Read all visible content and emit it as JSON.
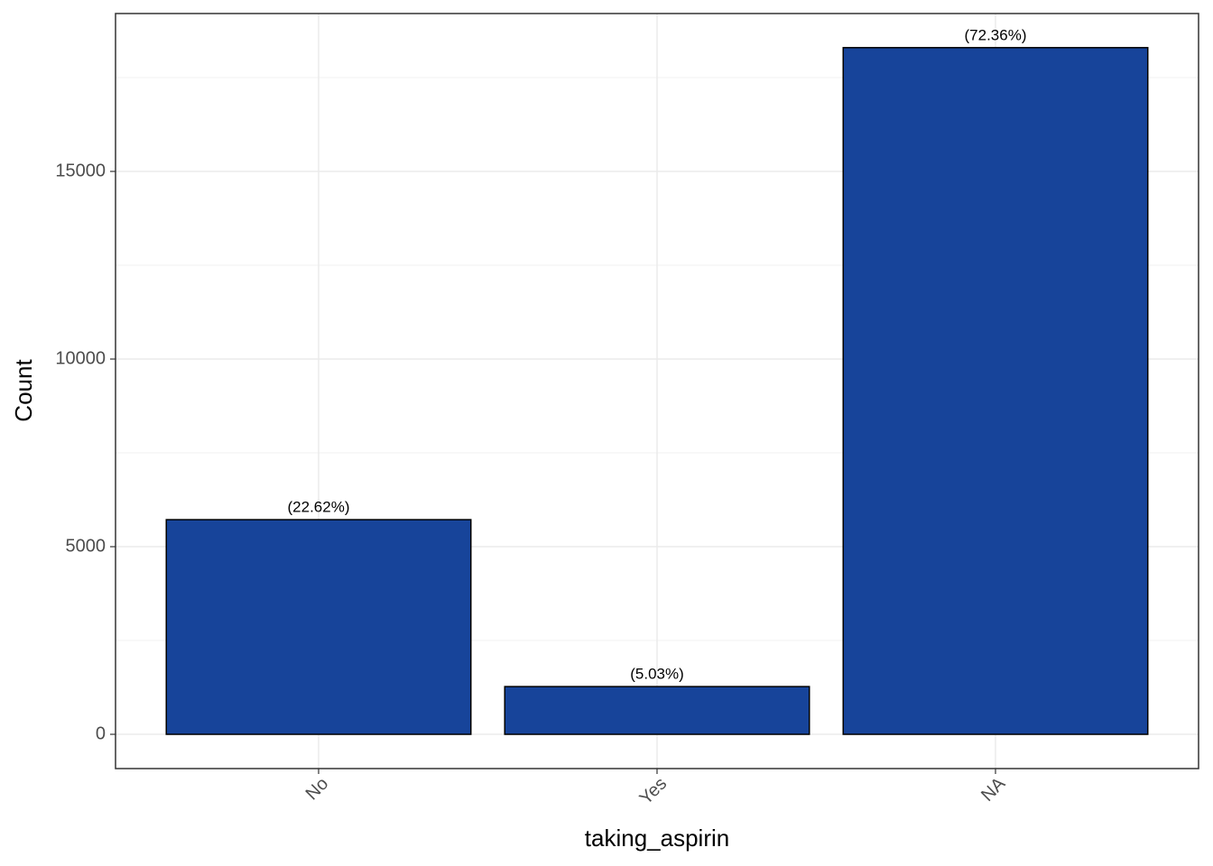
{
  "chart_data": {
    "type": "bar",
    "x_label": "taking_aspirin",
    "y_label": "Count",
    "categories": [
      "No",
      "Yes",
      "NA"
    ],
    "values": [
      5720,
      1272,
      18298
    ],
    "percent_labels": [
      "(22.62%)",
      "(5.03%)",
      "(72.36%)"
    ],
    "color": "#17449a",
    "ylim": [
      -913,
      19207
    ],
    "yticks": [
      0,
      5000,
      10000,
      15000
    ],
    "grid": true,
    "minor_grid": true
  }
}
